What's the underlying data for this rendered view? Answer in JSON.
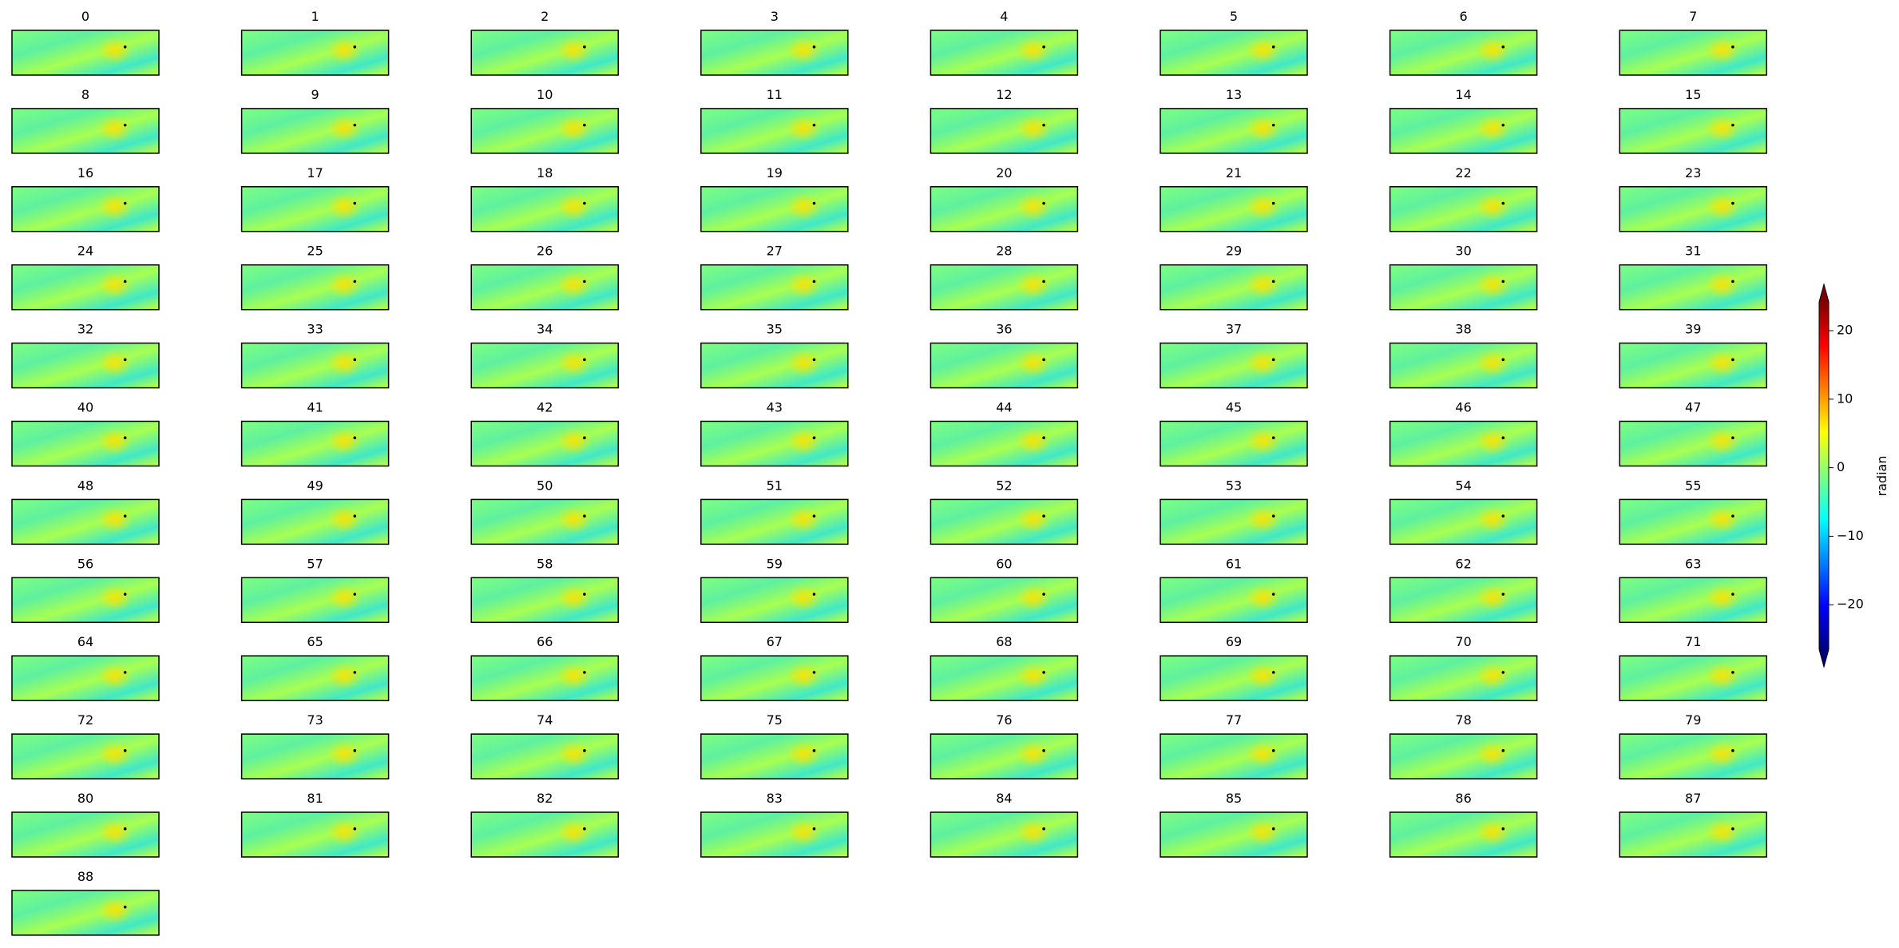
{
  "panels": [
    "0",
    "1",
    "2",
    "3",
    "4",
    "5",
    "6",
    "7",
    "8",
    "9",
    "10",
    "11",
    "12",
    "13",
    "14",
    "15",
    "16",
    "17",
    "18",
    "19",
    "20",
    "21",
    "22",
    "23",
    "24",
    "25",
    "26",
    "27",
    "28",
    "29",
    "30",
    "31",
    "32",
    "33",
    "34",
    "35",
    "36",
    "37",
    "38",
    "39",
    "40",
    "41",
    "42",
    "43",
    "44",
    "45",
    "46",
    "47",
    "48",
    "49",
    "50",
    "51",
    "52",
    "53",
    "54",
    "55",
    "56",
    "57",
    "58",
    "59",
    "60",
    "61",
    "62",
    "63",
    "64",
    "65",
    "66",
    "67",
    "68",
    "69",
    "70",
    "71",
    "72",
    "73",
    "74",
    "75",
    "76",
    "77",
    "78",
    "79",
    "80",
    "81",
    "82",
    "83",
    "84",
    "85",
    "86",
    "87",
    "88"
  ],
  "colorbar": {
    "label": "radian",
    "colormap": "jet",
    "lim": [
      -26.5,
      24.2
    ],
    "ticks": [
      20,
      10,
      0,
      {
        "value": -10,
        "label": "−10"
      },
      {
        "value": -20,
        "label": "−20"
      }
    ]
  }
}
